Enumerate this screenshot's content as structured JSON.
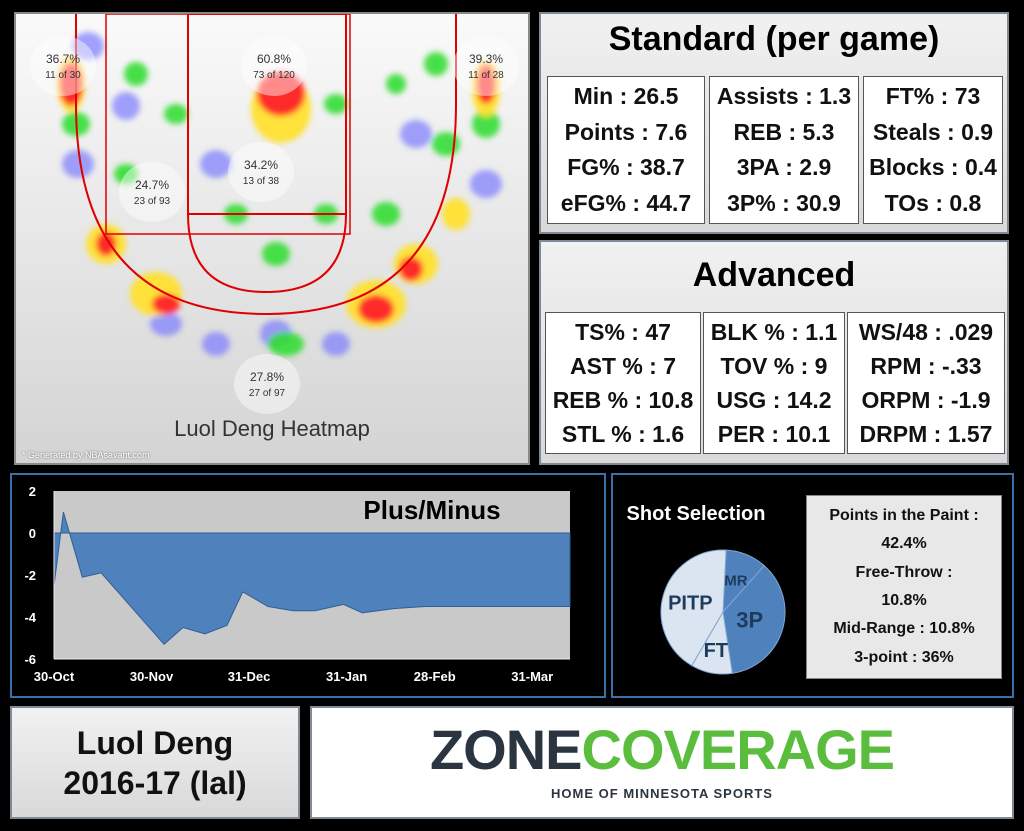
{
  "heatmap": {
    "title": "Luol Deng Heatmap",
    "credit": "* Generated by NBAsavant.com",
    "zones": [
      {
        "pct": "36.7%",
        "made": "11 of 30"
      },
      {
        "pct": "60.8%",
        "made": "73 of 120"
      },
      {
        "pct": "39.3%",
        "made": "11 of 28"
      },
      {
        "pct": "24.7%",
        "made": "23 of 93"
      },
      {
        "pct": "34.2%",
        "made": "13 of 38"
      },
      {
        "pct": "27.8%",
        "made": "27 of 97"
      }
    ]
  },
  "standard": {
    "title": "Standard (per game)",
    "columns": [
      [
        "Min : 26.5",
        "Points : 7.6",
        "FG% : 38.7",
        "eFG% : 44.7"
      ],
      [
        "Assists : 1.3",
        "REB : 5.3",
        "3PA : 2.9",
        "3P% : 30.9"
      ],
      [
        "FT% : 73",
        "Steals : 0.9",
        "Blocks : 0.4",
        "TOs : 0.8"
      ]
    ]
  },
  "advanced": {
    "title": "Advanced",
    "columns": [
      [
        "TS% : 47",
        "AST % : 7",
        "REB % : 10.8",
        "STL % : 1.6"
      ],
      [
        "BLK % : 1.1",
        "TOV % : 9",
        "USG : 14.2",
        "PER : 10.1"
      ],
      [
        "WS/48 :  .029",
        "RPM : -.33",
        "ORPM : -1.9",
        "DRPM : 1.57"
      ]
    ]
  },
  "chart_data": [
    {
      "type": "area",
      "title": "Plus/Minus",
      "xlabel": "",
      "ylabel": "",
      "ylim": [
        -6,
        2
      ],
      "yticks": [
        2,
        0,
        -2,
        -4,
        -6
      ],
      "xlim": [
        "2016-10-30",
        "2017-04-12"
      ],
      "xticks": [
        "2016-10-30",
        "2016-11-30",
        "2016-12-31",
        "2017-01-31",
        "2017-02-28",
        "2017-03-31"
      ],
      "xtick_labels": [
        "30-Oct",
        "30-Nov",
        "31-Dec",
        "31-Jan",
        "28-Feb",
        "31-Mar"
      ],
      "grid": false,
      "color": "#4f81bd",
      "x": [
        "2016-10-30",
        "2016-11-02",
        "2016-11-08",
        "2016-11-14",
        "2016-12-04",
        "2016-12-10",
        "2016-12-17",
        "2016-12-24",
        "2016-12-29",
        "2017-01-06",
        "2017-01-14",
        "2017-01-21",
        "2017-01-30",
        "2017-02-05",
        "2017-02-15",
        "2017-02-25",
        "2017-03-05",
        "2017-04-12"
      ],
      "y": [
        -2.5,
        1.0,
        -2.1,
        -1.9,
        -5.3,
        -4.5,
        -4.8,
        -4.4,
        -2.8,
        -3.5,
        -3.7,
        -3.7,
        -3.4,
        -3.8,
        -3.6,
        -3.5,
        -3.5,
        -3.5
      ]
    },
    {
      "type": "pie",
      "title": "Shot Selection",
      "labels": [
        "MR",
        "3P",
        "FT",
        "PITP"
      ],
      "values": [
        10.8,
        36,
        10.8,
        42.4
      ],
      "colors": [
        "#4f81bd",
        "#4f81bd",
        "#dbe5f1",
        "#dbe5f1"
      ]
    }
  ],
  "shot_legend": [
    "Points in the Paint :",
    "42.4%",
    "Free-Throw :",
    "10.8%",
    "Mid-Range : 10.8%",
    "3-point : 36%"
  ],
  "player": {
    "name": "Luol Deng",
    "season": "2016-17 (lal)"
  },
  "logo": {
    "zone": "ZONE",
    "coverage": "COVERAGE",
    "tagline": "HOME OF MINNESOTA SPORTS"
  }
}
